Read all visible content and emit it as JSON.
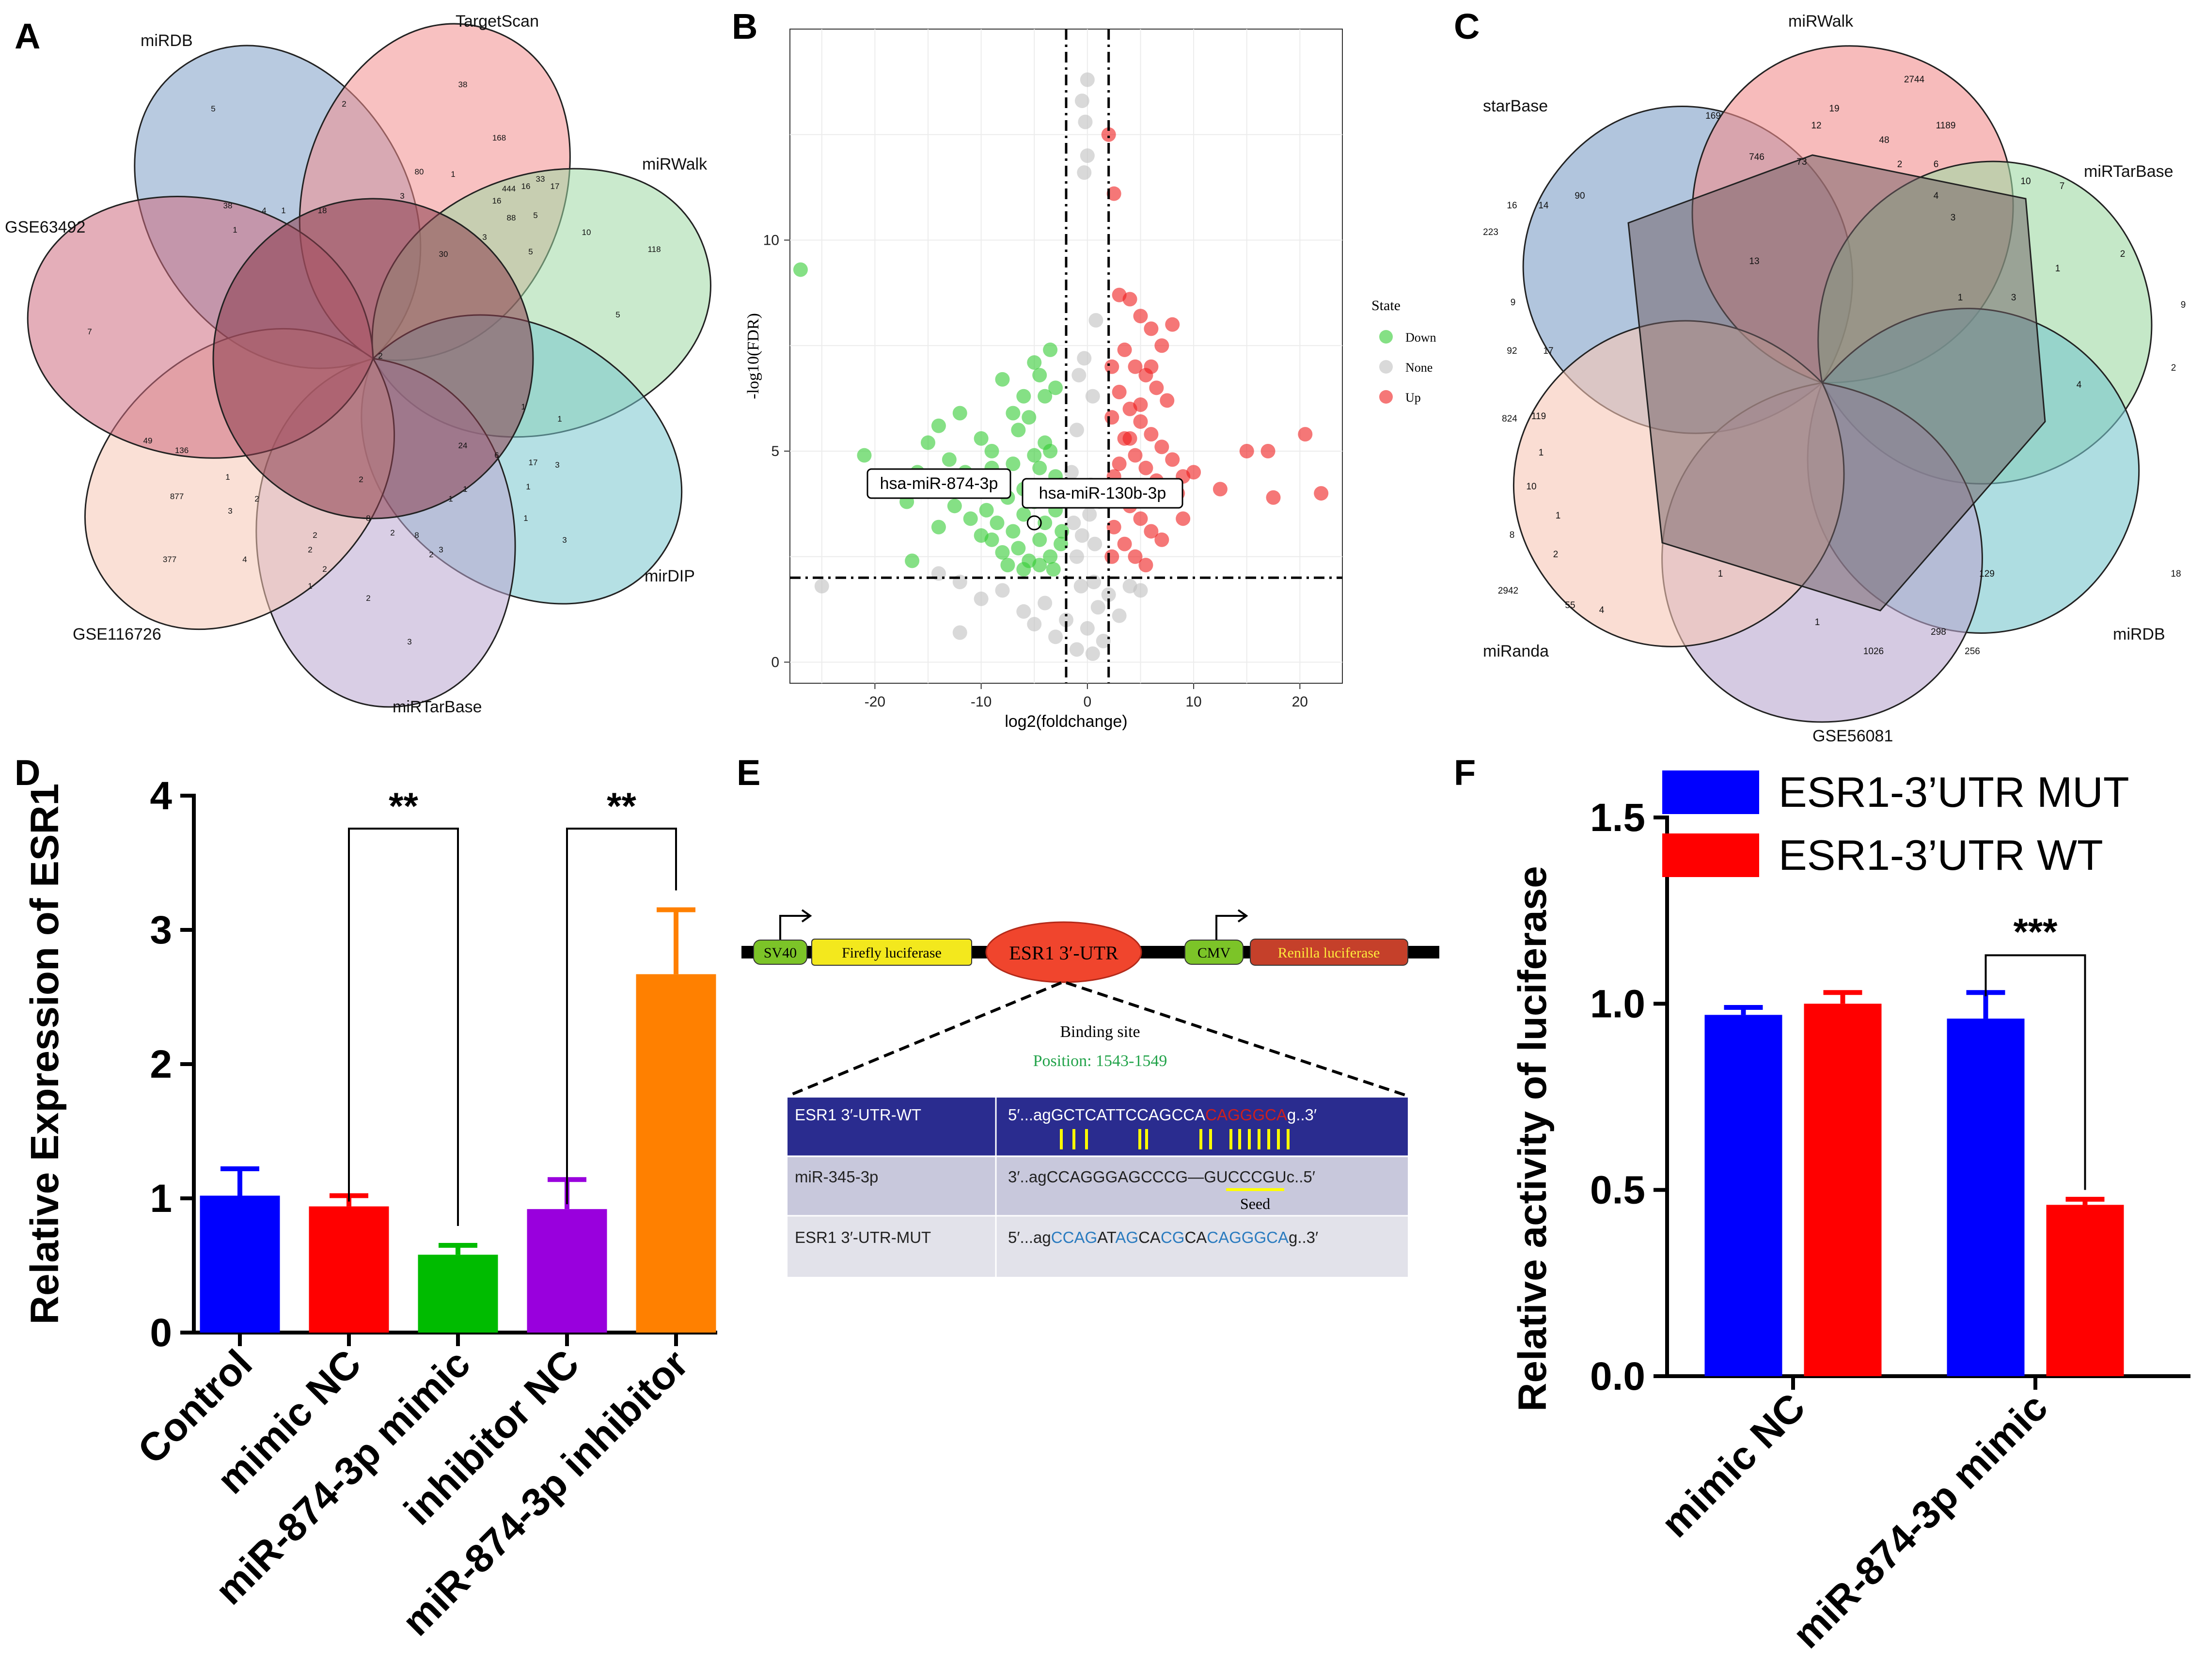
{
  "figure": {
    "panel_labels": [
      "A",
      "B",
      "C",
      "D",
      "E",
      "F"
    ]
  },
  "panel_a": {
    "sets": [
      {
        "name": "miRDB",
        "color": "#7d9ec7"
      },
      {
        "name": "TargetScan",
        "color": "#f28e8e"
      },
      {
        "name": "miRWalk",
        "color": "#9fd8a4"
      },
      {
        "name": "mirDIP",
        "color": "#78c7cd"
      },
      {
        "name": "miRTarBase",
        "color": "#b9a6cf"
      },
      {
        "name": "GSE116726",
        "color": "#f6c6b5"
      },
      {
        "name": "GSE63492",
        "color": "#cd6c7f"
      }
    ],
    "counts": [
      "5",
      "2",
      "38",
      "168",
      "16",
      "17",
      "444",
      "33",
      "80",
      "1",
      "16",
      "88",
      "5",
      "10",
      "118",
      "5",
      "4",
      "1",
      "18",
      "3",
      "30",
      "3",
      "5",
      "7",
      "2",
      "38",
      "1",
      "1",
      "1",
      "49",
      "136",
      "877",
      "377",
      "1",
      "3",
      "2",
      "4",
      "2",
      "1",
      "24",
      "6",
      "1",
      "17",
      "3",
      "2",
      "2",
      "8",
      "2",
      "8",
      "2",
      "3",
      "1",
      "1",
      "2",
      "3",
      "3",
      "2",
      "1"
    ]
  },
  "panel_b": {
    "xlabel": "log2(foldchange)",
    "ylabel": "-log10(FDR)",
    "legend_title": "State",
    "legend_items": [
      {
        "label": "Down",
        "color": "#33cc33"
      },
      {
        "label": "None",
        "color": "#bfbfbf"
      },
      {
        "label": "Up",
        "color": "#ee1c1c"
      }
    ],
    "annotations": [
      "hsa-miR-874-3p",
      "hsa-miR-130b-3p"
    ],
    "x_ticks": [
      "-20",
      "-10",
      "0",
      "10",
      "20"
    ],
    "y_ticks": [
      "0",
      "5",
      "10"
    ]
  },
  "panel_c": {
    "sets": [
      {
        "name": "starBase",
        "color": "#7d9ec7"
      },
      {
        "name": "miRWalk",
        "color": "#f28e8e"
      },
      {
        "name": "miRTarBase",
        "color": "#9fd8a4"
      },
      {
        "name": "miRDB",
        "color": "#78c7cd"
      },
      {
        "name": "GSE56081",
        "color": "#b9a6cf"
      },
      {
        "name": "miRanda",
        "color": "#f6c6b5"
      }
    ],
    "counts": [
      "2744",
      "169",
      "19",
      "1189",
      "12",
      "48",
      "746",
      "73",
      "2",
      "6",
      "16",
      "14",
      "90",
      "4",
      "10",
      "7",
      "223",
      "13",
      "2",
      "3",
      "1",
      "1",
      "3",
      "9",
      "9",
      "92",
      "17",
      "2",
      "824",
      "119",
      "1",
      "4",
      "10",
      "1",
      "8",
      "2",
      "18",
      "2942",
      "55",
      "4",
      "1",
      "1",
      "129",
      "298",
      "256",
      "1026"
    ]
  },
  "chart_data": [
    {
      "type": "scatter",
      "panel": "B",
      "title": "",
      "xlabel": "log2(foldchange)",
      "ylabel": "-log10(FDR)",
      "xlim": [
        -28,
        24
      ],
      "ylim": [
        -0.5,
        15
      ],
      "thresholds": {
        "x": [
          -2,
          2
        ],
        "y": 2
      },
      "series": [
        {
          "name": "Down",
          "color": "#33cc33",
          "points": [
            [
              -27,
              9.3
            ],
            [
              -21,
              4.9
            ],
            [
              -18,
              4.2
            ],
            [
              -17,
              3.8
            ],
            [
              -16,
              4.5
            ],
            [
              -15,
              5.2
            ],
            [
              -14,
              5.6
            ],
            [
              -13,
              4.8
            ],
            [
              -12,
              5.9
            ],
            [
              -11,
              4.1
            ],
            [
              -10,
              5.3
            ],
            [
              -9,
              4.6
            ],
            [
              -8,
              6.7
            ],
            [
              -7,
              5.9
            ],
            [
              -6,
              6.3
            ],
            [
              -5,
              7.1
            ],
            [
              -4.5,
              6.8
            ],
            [
              -4,
              6.3
            ],
            [
              -3.5,
              7.4
            ],
            [
              -3,
              6.5
            ],
            [
              -16.5,
              2.4
            ],
            [
              -14,
              3.2
            ],
            [
              -12.5,
              3.7
            ],
            [
              -11,
              3.4
            ],
            [
              -10,
              3.0
            ],
            [
              -9.5,
              3.6
            ],
            [
              -9,
              2.9
            ],
            [
              -8.5,
              3.3
            ],
            [
              -8,
              2.6
            ],
            [
              -7.5,
              3.9
            ],
            [
              -7,
              3.1
            ],
            [
              -6.5,
              2.7
            ],
            [
              -6,
              3.5
            ],
            [
              -5.5,
              2.4
            ],
            [
              -5,
              3.8
            ],
            [
              -4.5,
              2.9
            ],
            [
              -4,
              3.3
            ],
            [
              -3.5,
              2.5
            ],
            [
              -3,
              3.6
            ],
            [
              -2.5,
              2.8
            ],
            [
              -8,
              4.3
            ],
            [
              -7,
              4.7
            ],
            [
              -6,
              4.1
            ],
            [
              -5,
              4.9
            ],
            [
              -4,
              5.2
            ],
            [
              -3,
              4.4
            ],
            [
              -6.5,
              5.5
            ],
            [
              -5.5,
              5.8
            ],
            [
              -4.5,
              4.6
            ],
            [
              -3.5,
              5.0
            ],
            [
              -2.5,
              4.2
            ],
            [
              -9,
              5.0
            ],
            [
              -11.5,
              4.5
            ],
            [
              -13,
              4.2
            ],
            [
              -7.5,
              2.3
            ],
            [
              -6,
              2.2
            ],
            [
              -4.5,
              2.3
            ],
            [
              -3.2,
              2.2
            ],
            [
              -2.4,
              3.1
            ],
            [
              -2.4,
              4.0
            ]
          ]
        },
        {
          "name": "None",
          "color": "#bfbfbf",
          "points": [
            [
              0,
              13.8
            ],
            [
              -0.5,
              13.3
            ],
            [
              -0.2,
              12.8
            ],
            [
              0,
              12.0
            ],
            [
              -0.3,
              11.6
            ],
            [
              -14,
              2.1
            ],
            [
              -12,
              1.9
            ],
            [
              -25,
              1.8
            ],
            [
              -12,
              0.7
            ],
            [
              -10,
              1.5
            ],
            [
              -8,
              1.7
            ],
            [
              -6,
              1.2
            ],
            [
              -5,
              0.9
            ],
            [
              -4,
              1.4
            ],
            [
              -3,
              0.6
            ],
            [
              -2,
              1.0
            ],
            [
              -1,
              0.3
            ],
            [
              0,
              0.8
            ],
            [
              0.5,
              0.2
            ],
            [
              1,
              1.3
            ],
            [
              1.5,
              0.5
            ],
            [
              2,
              1.6
            ],
            [
              3,
              1.1
            ],
            [
              4,
              1.8
            ],
            [
              5,
              1.7
            ],
            [
              -1,
              2.5
            ],
            [
              -0.5,
              3.0
            ],
            [
              0.2,
              3.5
            ],
            [
              0.7,
              2.8
            ],
            [
              -1.5,
              4.5
            ],
            [
              -1,
              5.5
            ],
            [
              0.5,
              6.3
            ],
            [
              -0.3,
              7.2
            ],
            [
              0.8,
              8.1
            ],
            [
              -0.8,
              6.8
            ],
            [
              0.3,
              4.2
            ],
            [
              1.2,
              3.8
            ],
            [
              -1.3,
              3.3
            ],
            [
              0.6,
              1.9
            ],
            [
              -0.6,
              1.8
            ]
          ]
        },
        {
          "name": "Up",
          "color": "#ee1c1c",
          "points": [
            [
              2,
              12.5
            ],
            [
              2.5,
              11.1
            ],
            [
              20.5,
              5.4
            ],
            [
              17,
              5.0
            ],
            [
              15,
              5.0
            ],
            [
              22,
              4.0
            ],
            [
              17.5,
              3.9
            ],
            [
              12.5,
              4.1
            ],
            [
              9,
              4.4
            ],
            [
              3,
              8.7
            ],
            [
              4,
              8.6
            ],
            [
              5,
              8.2
            ],
            [
              6,
              7.9
            ],
            [
              7,
              7.5
            ],
            [
              8,
              8.0
            ],
            [
              3.5,
              7.4
            ],
            [
              4.5,
              7.0
            ],
            [
              5.5,
              6.8
            ],
            [
              6.5,
              6.5
            ],
            [
              7.5,
              6.2
            ],
            [
              3,
              6.4
            ],
            [
              4,
              6.0
            ],
            [
              5,
              5.7
            ],
            [
              6,
              5.4
            ],
            [
              7,
              5.1
            ],
            [
              8,
              4.8
            ],
            [
              3.5,
              5.3
            ],
            [
              4.5,
              4.9
            ],
            [
              5.5,
              4.6
            ],
            [
              6.5,
              4.3
            ],
            [
              2.5,
              4.4
            ],
            [
              3,
              3.9
            ],
            [
              4,
              3.7
            ],
            [
              5,
              3.4
            ],
            [
              6,
              3.1
            ],
            [
              7,
              2.9
            ],
            [
              2.5,
              3.2
            ],
            [
              3.5,
              2.8
            ],
            [
              4.5,
              2.5
            ],
            [
              5.5,
              2.3
            ],
            [
              2.3,
              2.5
            ],
            [
              2.3,
              5.8
            ],
            [
              2.3,
              7.0
            ],
            [
              8.5,
              4.0
            ],
            [
              9,
              3.4
            ],
            [
              10,
              4.5
            ],
            [
              3,
              4.7
            ],
            [
              4,
              5.3
            ],
            [
              5,
              6.1
            ],
            [
              6,
              7.0
            ]
          ]
        }
      ],
      "labeled_points": [
        {
          "label": "hsa-miR-874-3p",
          "x": -9.5,
          "y": 4.3
        },
        {
          "label": "hsa-miR-130b-3p",
          "x": -5,
          "y": 3.3
        }
      ]
    },
    {
      "type": "bar",
      "panel": "D",
      "title": "",
      "xlabel": "",
      "ylabel": "Relative Expression of ESR1",
      "ylim": [
        0,
        4
      ],
      "y_ticks": [
        "0",
        "1",
        "2",
        "3",
        "4"
      ],
      "categories": [
        "Control",
        "mimic NC",
        "miR-874-3p mimic",
        "inhibitor NC",
        "miR-874-3p inhibitor"
      ],
      "values": [
        1.02,
        0.94,
        0.58,
        0.92,
        2.67
      ],
      "errors": [
        0.2,
        0.08,
        0.07,
        0.22,
        0.48
      ],
      "colors": [
        "#0000ff",
        "#ff0000",
        "#00bb00",
        "#9900dd",
        "#ff8000"
      ],
      "significance": [
        {
          "from": 1,
          "to": 2,
          "label": "**"
        },
        {
          "from": 3,
          "to": 4,
          "label": "**"
        }
      ]
    },
    {
      "type": "bar",
      "panel": "F",
      "title": "",
      "xlabel": "",
      "ylabel": "Relative activity of luciferase",
      "ylim": [
        0,
        1.5
      ],
      "y_ticks": [
        "0.0",
        "0.5",
        "1.0",
        "1.5"
      ],
      "categories": [
        "mimic NC",
        "miR-874-3p mimic"
      ],
      "series": [
        {
          "name": "ESR1-3’UTR MUT",
          "color": "#0000ff",
          "values": [
            0.97,
            0.96
          ],
          "errors": [
            0.02,
            0.07
          ]
        },
        {
          "name": "ESR1-3’UTR WT",
          "color": "#ff0000",
          "values": [
            1.0,
            0.46
          ],
          "errors": [
            0.03,
            0.015
          ]
        }
      ],
      "significance": [
        {
          "category": 1,
          "label": "***"
        }
      ]
    }
  ],
  "panel_e": {
    "construct": {
      "sv40": "SV40",
      "firefly": "Firefly luciferase",
      "utr": "ESR1 3′-UTR",
      "cmv": "CMV",
      "renilla": "Renilla luciferase"
    },
    "binding_title": "Binding site",
    "position": "Position: 1543-1549",
    "seed_label": "Seed",
    "rows": [
      {
        "name": "ESR1 3′-UTR-WT",
        "seq_a": "5′...agGCTCATTCCAGCCA",
        "seq_b": "CAGGGCA",
        "seq_c": "g..3′"
      },
      {
        "name": "miR-345-3p",
        "seq": "3′..agCCAGGGAGCCCG—GUCCCGUc..5′"
      },
      {
        "name": "ESR1 3′-UTR-MUT",
        "segments": [
          "5′...ag",
          "C",
          "CAG",
          "AT",
          "AG",
          "CA",
          "CG",
          "CA",
          "CAGGGCA",
          "g..3′"
        ]
      }
    ],
    "colors": {
      "table_header": "#2a2c8f",
      "row2": "#c8c8dc",
      "row3": "#e2e2ea",
      "seed_red": "#cc1f1f",
      "mut_blue": "#2a7bbf",
      "pair_yellow": "#ffff00"
    }
  }
}
